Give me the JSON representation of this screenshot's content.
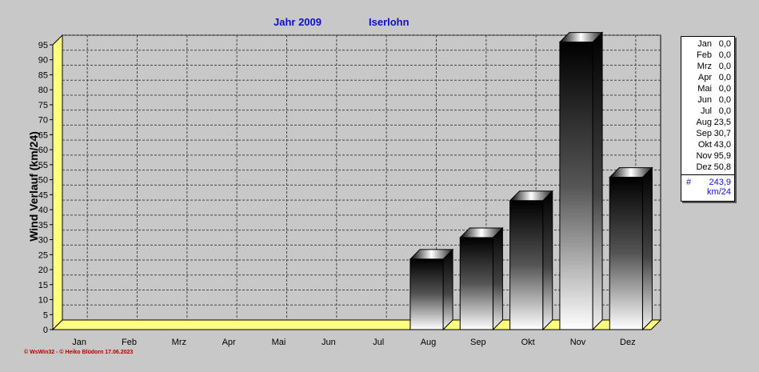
{
  "header": {
    "year_label": "Jahr  2009",
    "location": "Iserlohn"
  },
  "chart_data": {
    "type": "bar",
    "categories": [
      "Jan",
      "Feb",
      "Mrz",
      "Apr",
      "Mai",
      "Jun",
      "Jul",
      "Aug",
      "Sep",
      "Okt",
      "Nov",
      "Dez"
    ],
    "values": [
      0,
      0,
      0,
      0,
      0,
      0,
      0,
      23.5,
      30.7,
      43.0,
      95.9,
      50.8
    ],
    "ylabel": "Wind Verlauf  (km/24)",
    "ylim": [
      0,
      95
    ],
    "yticks": [
      0,
      5,
      10,
      15,
      20,
      25,
      30,
      35,
      40,
      45,
      50,
      55,
      60,
      65,
      70,
      75,
      80,
      85,
      90,
      95
    ],
    "grid": true,
    "legend_position": "right"
  },
  "legend": {
    "rows": [
      {
        "month": "Jan",
        "value": "0,0"
      },
      {
        "month": "Feb",
        "value": "0,0"
      },
      {
        "month": "Mrz",
        "value": "0,0"
      },
      {
        "month": "Apr",
        "value": "0,0"
      },
      {
        "month": "Mai",
        "value": "0,0"
      },
      {
        "month": "Jun",
        "value": "0,0"
      },
      {
        "month": "Jul",
        "value": "0,0"
      },
      {
        "month": "Aug",
        "value": "23,5"
      },
      {
        "month": "Sep",
        "value": "30,7"
      },
      {
        "month": "Okt",
        "value": "43,0"
      },
      {
        "month": "Nov",
        "value": "95,9"
      },
      {
        "month": "Dez",
        "value": "50,8"
      }
    ],
    "total_symbol": "#",
    "total": "243,9",
    "unit": "km/24"
  },
  "footer": {
    "credit": "© WsWin32  -  © Heiko Blüdorn  17.06.2023"
  },
  "colors": {
    "title": "#1010c8",
    "background": "#c8c8c8",
    "floor": "#ffff80",
    "plot": "#c8c8c8"
  }
}
